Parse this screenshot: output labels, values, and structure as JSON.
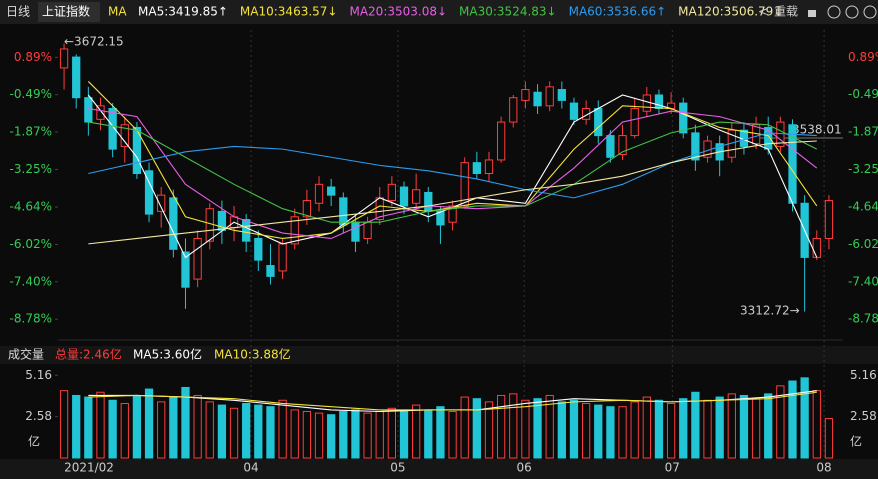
{
  "header": {
    "period": "日线",
    "name": "上证指数",
    "indicator": "MA",
    "ma_labels": [
      {
        "text": "MA5:3419.85↑",
        "color": "#ffffff"
      },
      {
        "text": "MA10:3463.57↓",
        "color": "#f5e23a"
      },
      {
        "text": "MA20:3503.08↓",
        "color": "#e85ee8"
      },
      {
        "text": "MA30:3524.83↓",
        "color": "#43c343"
      },
      {
        "text": "MA60:3536.66↑",
        "color": "#2b9cf0"
      },
      {
        "text": "MA120:3506.79↓",
        "color": "#f3e9a0"
      }
    ],
    "back": "<",
    "reload": "重载"
  },
  "chart_data": {
    "type": "candlestick",
    "ylim": [
      -9.55,
      1.9
    ],
    "yticks": [
      {
        "value": 0.89,
        "label": "0.89%"
      },
      {
        "value": -0.49,
        "label": "-0.49%"
      },
      {
        "value": -1.87,
        "label": "-1.87%"
      },
      {
        "value": -3.25,
        "label": "-3.25%"
      },
      {
        "value": -4.64,
        "label": "-4.64%"
      },
      {
        "value": -6.02,
        "label": "-6.02%"
      },
      {
        "value": -7.4,
        "label": "-7.40%"
      },
      {
        "value": -8.78,
        "label": "-8.78%"
      }
    ],
    "xticks": [
      {
        "value": 0,
        "label": "2021/02"
      },
      {
        "value": 15.4,
        "label": "04"
      },
      {
        "value": 27.5,
        "label": "05"
      },
      {
        "value": 37.9,
        "label": "06"
      },
      {
        "value": 50.1,
        "label": "07"
      },
      {
        "value": 62.6,
        "label": "08"
      }
    ],
    "xgrid": true,
    "up_color": "#ff3c3c",
    "down_color": "#22c5d6",
    "annotations": [
      "←3672.15",
      "3312.72→",
      "3538.01"
    ],
    "candles": [
      [
        0.5,
        1.2,
        1.4,
        -0.3
      ],
      [
        0.9,
        -0.6,
        1.0,
        -1.0
      ],
      [
        -0.6,
        -1.5,
        -0.2,
        -2.0
      ],
      [
        -1.4,
        -0.9,
        -0.6,
        -1.8
      ],
      [
        -1.0,
        -2.5,
        -0.8,
        -2.8
      ],
      [
        -2.4,
        -1.6,
        -1.3,
        -3.0
      ],
      [
        -1.7,
        -3.4,
        -1.5,
        -3.6
      ],
      [
        -3.3,
        -4.9,
        -3.0,
        -5.2
      ],
      [
        -4.8,
        -4.2,
        -3.9,
        -5.4
      ],
      [
        -4.3,
        -6.2,
        -4.0,
        -6.5
      ],
      [
        -6.3,
        -7.6,
        -5.8,
        -8.4
      ],
      [
        -7.3,
        -5.8,
        -5.5,
        -7.6
      ],
      [
        -5.9,
        -4.7,
        -4.5,
        -6.2
      ],
      [
        -4.8,
        -5.5,
        -4.4,
        -6.0
      ],
      [
        -5.4,
        -5.0,
        -4.6,
        -5.9
      ],
      [
        -5.1,
        -5.9,
        -4.9,
        -6.3
      ],
      [
        -5.8,
        -6.6,
        -5.5,
        -7.0
      ],
      [
        -6.8,
        -7.2,
        -6.0,
        -7.5
      ],
      [
        -7.0,
        -6.0,
        -5.8,
        -7.3
      ],
      [
        -6.0,
        -5.0,
        -4.7,
        -6.2
      ],
      [
        -5.0,
        -4.4,
        -4.0,
        -5.3
      ],
      [
        -4.5,
        -3.8,
        -3.5,
        -4.8
      ],
      [
        -3.9,
        -4.2,
        -3.6,
        -4.6
      ],
      [
        -4.3,
        -5.3,
        -4.1,
        -5.6
      ],
      [
        -5.2,
        -5.9,
        -4.9,
        -6.3
      ],
      [
        -5.8,
        -5.2,
        -5.0,
        -6.0
      ],
      [
        -5.1,
        -4.3,
        -3.9,
        -5.3
      ],
      [
        -4.4,
        -3.8,
        -3.5,
        -4.6
      ],
      [
        -3.9,
        -4.6,
        -3.7,
        -4.9
      ],
      [
        -4.5,
        -4.0,
        -3.4,
        -4.7
      ],
      [
        -4.1,
        -4.8,
        -3.9,
        -5.2
      ],
      [
        -4.8,
        -5.3,
        -4.6,
        -6.0
      ],
      [
        -5.2,
        -4.6,
        -4.4,
        -5.5
      ],
      [
        -4.6,
        -3.0,
        -2.8,
        -4.7
      ],
      [
        -3.0,
        -3.4,
        -2.6,
        -3.6
      ],
      [
        -3.4,
        -2.9,
        -2.6,
        -3.7
      ],
      [
        -2.9,
        -1.5,
        -1.3,
        -3.0
      ],
      [
        -1.5,
        -0.6,
        -0.5,
        -1.7
      ],
      [
        -0.7,
        -0.3,
        0.0,
        -1.0
      ],
      [
        -0.4,
        -0.9,
        -0.1,
        -1.2
      ],
      [
        -0.9,
        -0.2,
        0.0,
        -1.1
      ],
      [
        -0.3,
        -0.7,
        0.0,
        -1.0
      ],
      [
        -0.8,
        -1.4,
        -0.6,
        -1.6
      ],
      [
        -1.4,
        -1.0,
        -0.7,
        -1.6
      ],
      [
        -1.0,
        -2.0,
        -0.7,
        -2.3
      ],
      [
        -2.0,
        -2.8,
        -1.8,
        -3.0
      ],
      [
        -2.7,
        -2.0,
        -1.6,
        -2.9
      ],
      [
        -2.0,
        -1.0,
        -0.6,
        -2.1
      ],
      [
        -1.1,
        -0.5,
        -0.2,
        -1.3
      ],
      [
        -0.5,
        -1.0,
        -0.3,
        -1.2
      ],
      [
        -1.0,
        -0.8,
        -0.4,
        -1.2
      ],
      [
        -0.8,
        -1.9,
        -0.6,
        -2.1
      ],
      [
        -1.9,
        -2.9,
        -1.6,
        -3.3
      ],
      [
        -2.8,
        -2.2,
        -2.0,
        -3.0
      ],
      [
        -2.3,
        -2.9,
        -2.0,
        -3.5
      ],
      [
        -2.8,
        -1.8,
        -1.5,
        -3.0
      ],
      [
        -1.8,
        -2.4,
        -1.5,
        -2.7
      ],
      [
        -2.3,
        -1.6,
        -1.3,
        -2.5
      ],
      [
        -1.7,
        -2.5,
        -1.3,
        -2.7
      ],
      [
        -2.4,
        -1.5,
        -1.3,
        -2.6
      ],
      [
        -1.6,
        -4.5,
        -1.4,
        -4.8
      ],
      [
        -4.5,
        -6.5,
        -4.2,
        -8.5
      ],
      [
        -6.5,
        -5.8,
        -5.5,
        -6.6
      ],
      [
        -5.8,
        -4.4,
        -4.2,
        -6.2
      ]
    ],
    "line_x": [
      2,
      6,
      10,
      14,
      18,
      22,
      26,
      30,
      34,
      38,
      42,
      46,
      50,
      54,
      58,
      62
    ],
    "series": [
      {
        "name": "MA5",
        "color": "#ffffff",
        "values": [
          -0.5,
          -2.8,
          -6.5,
          -5.2,
          -6.0,
          -5.6,
          -4.3,
          -5.0,
          -4.3,
          -4.5,
          -1.5,
          -0.5,
          -1.0,
          -1.8,
          -2.5,
          -6.5
        ]
      },
      {
        "name": "MA10",
        "color": "#f5e23a",
        "values": [
          0.0,
          -1.8,
          -5.0,
          -5.5,
          -5.8,
          -5.6,
          -4.6,
          -4.8,
          -4.5,
          -4.6,
          -2.5,
          -0.9,
          -1.0,
          -1.7,
          -2.0,
          -4.6
        ]
      },
      {
        "name": "MA20",
        "color": "#e85ee8",
        "values": [
          -1.0,
          -1.3,
          -3.8,
          -5.0,
          -5.6,
          -5.8,
          -5.0,
          -4.6,
          -4.7,
          -4.6,
          -3.2,
          -1.5,
          -1.1,
          -1.3,
          -1.8,
          -3.2
        ]
      },
      {
        "name": "MA30",
        "color": "#43c343",
        "values": [
          -1.5,
          -1.8,
          -2.8,
          -3.8,
          -4.7,
          -5.2,
          -5.2,
          -4.8,
          -4.6,
          -4.6,
          -3.8,
          -2.6,
          -1.9,
          -1.5,
          -1.6,
          -2.5
        ]
      },
      {
        "name": "MA60",
        "color": "#2b9cf0",
        "values": [
          -3.4,
          -3.0,
          -2.6,
          -2.4,
          -2.5,
          -2.8,
          -3.1,
          -3.3,
          -3.6,
          -4.0,
          -4.3,
          -3.8,
          -3.0,
          -2.4,
          -1.9,
          -2.0
        ]
      },
      {
        "name": "MA120",
        "color": "#f3e9a0",
        "values": [
          -6.0,
          -5.8,
          -5.6,
          -5.4,
          -5.2,
          -5.0,
          -4.8,
          -4.6,
          -4.3,
          -4.0,
          -3.8,
          -3.5,
          -3.0,
          -2.6,
          -2.3,
          -2.2
        ]
      }
    ],
    "volume": {
      "title": "成交量",
      "total": "总量:2.46亿",
      "ma5": "MA5:3.60亿",
      "ma10": "MA10:3.88亿",
      "unit": "亿",
      "ylim": [
        0,
        5.8
      ],
      "yticks": [
        5.16,
        2.58
      ],
      "values": [
        4.2,
        3.9,
        3.8,
        4.1,
        3.6,
        3.4,
        3.9,
        4.3,
        3.5,
        3.8,
        4.4,
        3.9,
        3.5,
        3.3,
        3.1,
        3.4,
        3.3,
        3.2,
        3.6,
        3.0,
        2.9,
        2.8,
        2.7,
        2.9,
        3.0,
        2.8,
        2.9,
        3.1,
        2.9,
        3.3,
        3.0,
        3.2,
        2.9,
        3.8,
        3.7,
        3.5,
        3.9,
        4.0,
        3.6,
        3.7,
        3.9,
        3.5,
        3.6,
        3.4,
        3.3,
        3.2,
        3.2,
        3.5,
        3.8,
        3.6,
        3.4,
        3.7,
        4.1,
        3.6,
        3.8,
        4.0,
        3.9,
        3.7,
        4.0,
        4.5,
        4.8,
        5.0,
        4.2,
        2.46
      ],
      "series": [
        {
          "name": "MA5",
          "color": "#ffffff",
          "values": [
            3.9,
            3.9,
            3.8,
            3.6,
            3.3,
            3.0,
            2.9,
            3.0,
            3.0,
            3.4,
            3.7,
            3.6,
            3.5,
            3.6,
            3.8,
            4.2
          ]
        },
        {
          "name": "MA10",
          "color": "#f5e23a",
          "values": [
            3.8,
            3.9,
            3.8,
            3.7,
            3.4,
            3.2,
            3.0,
            3.0,
            3.0,
            3.2,
            3.5,
            3.6,
            3.5,
            3.6,
            3.7,
            4.1
          ]
        }
      ]
    }
  }
}
